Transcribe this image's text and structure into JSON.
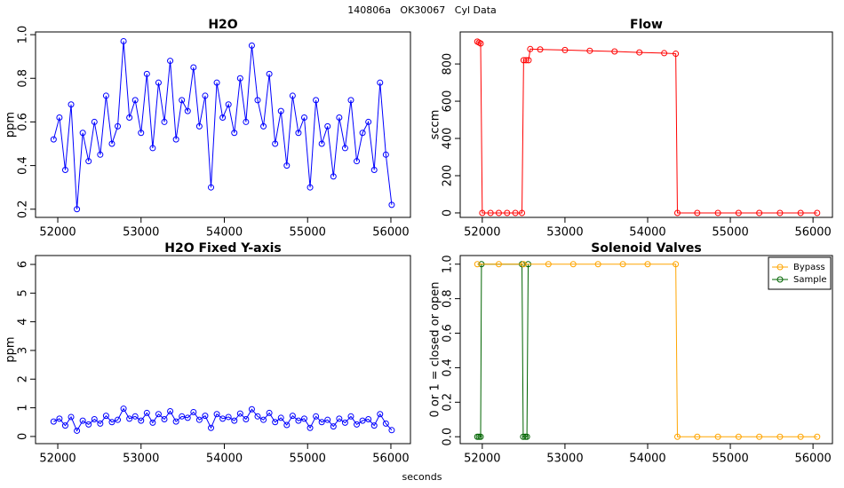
{
  "suptitle": "140806a   OK30067   Cyl Data",
  "xlabel": "seconds",
  "chart_data": [
    {
      "type": "line",
      "title": "H2O",
      "ylabel": "ppm",
      "color": "#0000ff",
      "x": [
        51950,
        52020,
        52090,
        52160,
        52230,
        52300,
        52370,
        52440,
        52510,
        52580,
        52650,
        52720,
        52790,
        52860,
        52930,
        53000,
        53070,
        53140,
        53210,
        53280,
        53350,
        53420,
        53490,
        53560,
        53630,
        53700,
        53770,
        53840,
        53910,
        53980,
        54050,
        54120,
        54190,
        54260,
        54330,
        54400,
        54470,
        54540,
        54610,
        54680,
        54750,
        54820,
        54890,
        54960,
        55030,
        55100,
        55170,
        55240,
        55310,
        55380,
        55450,
        55520,
        55590,
        55660,
        55730,
        55800,
        55870,
        55940,
        56010
      ],
      "values": [
        0.52,
        0.62,
        0.38,
        0.68,
        0.2,
        0.55,
        0.42,
        0.6,
        0.45,
        0.72,
        0.5,
        0.58,
        0.97,
        0.62,
        0.7,
        0.55,
        0.82,
        0.48,
        0.78,
        0.6,
        0.88,
        0.52,
        0.7,
        0.65,
        0.85,
        0.58,
        0.72,
        0.3,
        0.78,
        0.62,
        0.68,
        0.55,
        0.8,
        0.6,
        0.95,
        0.7,
        0.58,
        0.82,
        0.5,
        0.65,
        0.4,
        0.72,
        0.55,
        0.62,
        0.3,
        0.7,
        0.5,
        0.58,
        0.35,
        0.62,
        0.48,
        0.7,
        0.42,
        0.55,
        0.6,
        0.38,
        0.78,
        0.45,
        0.22
      ],
      "xlim": [
        51733,
        56235
      ],
      "xticks": [
        52000,
        53000,
        54000,
        55000,
        56000
      ],
      "ylim": [
        0.1625,
        1.0125
      ],
      "yticks": [
        0.2,
        0.4,
        0.6,
        0.8,
        {
          "value": 1,
          "label": "1.0"
        }
      ]
    },
    {
      "type": "line",
      "title": "Flow",
      "ylabel": "sccm",
      "color": "#ff0000",
      "x": [
        51940,
        51960,
        51980,
        52000,
        52100,
        52200,
        52300,
        52400,
        52480,
        52500,
        52530,
        52560,
        52580,
        52700,
        53000,
        53300,
        53600,
        53900,
        54200,
        54340,
        54360,
        54600,
        54850,
        55100,
        55350,
        55600,
        55850,
        56050
      ],
      "values": [
        920,
        915,
        910,
        0,
        0,
        0,
        0,
        0,
        0,
        820,
        820,
        820,
        880,
        878,
        875,
        871,
        867,
        862,
        858,
        855,
        0,
        0,
        0,
        0,
        0,
        0,
        0,
        0
      ],
      "xlim": [
        51733,
        56235
      ],
      "xticks": [
        52000,
        53000,
        54000,
        55000,
        56000
      ],
      "ylim": [
        -24,
        972
      ],
      "yticks": [
        0,
        200,
        400,
        600,
        800
      ]
    },
    {
      "type": "line",
      "title": "H2O Fixed Y-axis",
      "ylabel": "ppm",
      "color": "#0000ff",
      "x": [
        51950,
        52020,
        52090,
        52160,
        52230,
        52300,
        52370,
        52440,
        52510,
        52580,
        52650,
        52720,
        52790,
        52860,
        52930,
        53000,
        53070,
        53140,
        53210,
        53280,
        53350,
        53420,
        53490,
        53560,
        53630,
        53700,
        53770,
        53840,
        53910,
        53980,
        54050,
        54120,
        54190,
        54260,
        54330,
        54400,
        54470,
        54540,
        54610,
        54680,
        54750,
        54820,
        54890,
        54960,
        55030,
        55100,
        55170,
        55240,
        55310,
        55380,
        55450,
        55520,
        55590,
        55660,
        55730,
        55800,
        55870,
        55940,
        56010
      ],
      "values": [
        0.52,
        0.62,
        0.38,
        0.68,
        0.2,
        0.55,
        0.42,
        0.6,
        0.45,
        0.72,
        0.5,
        0.58,
        0.97,
        0.62,
        0.7,
        0.55,
        0.82,
        0.48,
        0.78,
        0.6,
        0.88,
        0.52,
        0.7,
        0.65,
        0.85,
        0.58,
        0.72,
        0.3,
        0.78,
        0.62,
        0.68,
        0.55,
        0.8,
        0.6,
        0.95,
        0.7,
        0.58,
        0.82,
        0.5,
        0.65,
        0.4,
        0.72,
        0.55,
        0.62,
        0.3,
        0.7,
        0.5,
        0.58,
        0.35,
        0.62,
        0.48,
        0.7,
        0.42,
        0.55,
        0.6,
        0.38,
        0.78,
        0.45,
        0.22
      ],
      "xlim": [
        51733,
        56235
      ],
      "xticks": [
        52000,
        53000,
        54000,
        55000,
        56000
      ],
      "ylim": [
        -0.25,
        6.31
      ],
      "yticks": [
        0,
        1,
        2,
        3,
        4,
        5,
        6
      ]
    },
    {
      "type": "line",
      "title": "Solenoid Valves",
      "ylabel": "0 or 1 = closed or open",
      "series": [
        {
          "name": "Sample",
          "color": "#006400",
          "x": [
            51940,
            51960,
            51980,
            51990,
            52480,
            52495,
            52520,
            52540,
            52555
          ],
          "values": [
            0,
            0,
            0,
            1,
            1,
            0,
            0,
            0,
            1
          ]
        },
        {
          "name": "Bypass",
          "color": "#ffa500",
          "x": [
            51940,
            52200,
            52500,
            52800,
            53100,
            53400,
            53700,
            54000,
            54340,
            54360,
            54600,
            54850,
            55100,
            55350,
            55600,
            55850,
            56050
          ],
          "values": [
            1,
            1,
            1,
            1,
            1,
            1,
            1,
            1,
            1,
            0,
            0,
            0,
            0,
            0,
            0,
            0,
            0
          ]
        }
      ],
      "xlim": [
        51733,
        56235
      ],
      "xticks": [
        52000,
        53000,
        54000,
        55000,
        56000
      ],
      "ylim": [
        -0.04,
        1.05
      ],
      "yticks": [
        {
          "value": 0,
          "label": "0.0"
        },
        0.2,
        0.4,
        0.6,
        0.8,
        {
          "value": 1,
          "label": "1.0"
        }
      ],
      "legend": "top-right"
    }
  ]
}
